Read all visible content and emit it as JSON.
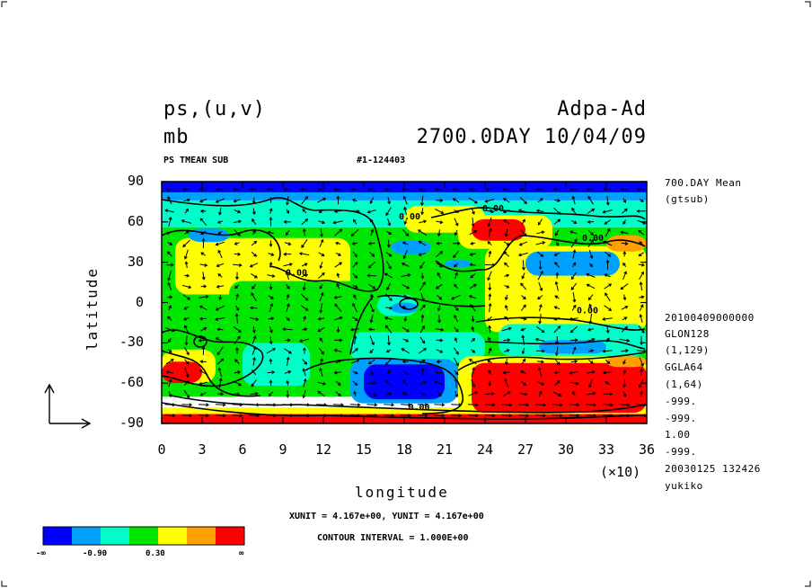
{
  "header": {
    "title_left": "ps,(u,v)",
    "title_right": "Adpa-Ad",
    "unit": "mb",
    "date": "2700.0DAY 10/04/09",
    "subtitle_left": "PS TMEAN SUB",
    "subtitle_mid": "#1-124403"
  },
  "side_info": [
    {
      "id": "mean",
      "text": "700.DAY Mean"
    },
    {
      "id": "src",
      "text": "(gtsub)"
    },
    {
      "id": "time",
      "text": "20100409000000"
    },
    {
      "id": "glon",
      "text": "GLON128"
    },
    {
      "id": "glon_range",
      "text": "(1,129)"
    },
    {
      "id": "gla",
      "text": "GGLA64"
    },
    {
      "id": "gla_range",
      "text": "(1,64)"
    },
    {
      "id": "m1",
      "text": "-999."
    },
    {
      "id": "m2",
      "text": "-999."
    },
    {
      "id": "one",
      "text": "1.00"
    },
    {
      "id": "m3",
      "text": "-999."
    },
    {
      "id": "stamp",
      "text": "20030125 132426"
    },
    {
      "id": "user",
      "text": "yukiko"
    }
  ],
  "footer": {
    "units": "XUNIT = 4.167e+00, YUNIT = 4.167e+00",
    "contour": "CONTOUR INTERVAL = 1.000E+00"
  },
  "legend": {
    "colors": [
      "#0000ff",
      "#00a0ff",
      "#00ffc8",
      "#00e600",
      "#ffff00",
      "#ffa000",
      "#ff0000"
    ],
    "ticks": [
      "-∞",
      "-0.90",
      "0.30",
      "∞"
    ]
  },
  "chart_data": {
    "type": "heatmap",
    "xlabel": "longitude",
    "ylabel": "latitude",
    "x_multiplier": "(×10)",
    "xlim": [
      0,
      36
    ],
    "ylim": [
      -90,
      90
    ],
    "xticks": [
      "0",
      "3",
      "6",
      "9",
      "12",
      "15",
      "18",
      "21",
      "24",
      "27",
      "30",
      "33",
      "36"
    ],
    "yticks": [
      "90",
      "60",
      "30",
      "0",
      "-30",
      "-60",
      "-90"
    ],
    "contour_labels": [
      "0.00",
      "0.00",
      "0.00",
      "0.00",
      "0.00",
      "0.00"
    ],
    "regions": [
      {
        "level": 1,
        "lon": [
          0,
          36
        ],
        "lat": [
          76,
          90
        ]
      },
      {
        "level": 0,
        "lon": [
          0,
          36
        ],
        "lat": [
          82,
          90
        ]
      },
      {
        "level": 2,
        "lon": [
          0,
          36
        ],
        "lat": [
          56,
          76
        ]
      },
      {
        "level": 3,
        "lon": [
          0,
          36
        ],
        "lat": [
          -70,
          56
        ]
      },
      {
        "level": 4,
        "lon": [
          0,
          36
        ],
        "lat": [
          -90,
          -78
        ]
      },
      {
        "level": 6,
        "lon": [
          0,
          36
        ],
        "lat": [
          -90,
          -83
        ]
      },
      {
        "level": 4,
        "lon": [
          1,
          14
        ],
        "lat": [
          6,
          48
        ]
      },
      {
        "level": 4,
        "lon": [
          18,
          24
        ],
        "lat": [
          52,
          72
        ]
      },
      {
        "level": 4,
        "lon": [
          24,
          36
        ],
        "lat": [
          -22,
          42
        ]
      },
      {
        "level": 3,
        "lon": [
          5,
          15
        ],
        "lat": [
          -30,
          16
        ]
      },
      {
        "level": 2,
        "lon": [
          6,
          11
        ],
        "lat": [
          -62,
          -30
        ]
      },
      {
        "level": 4,
        "lon": [
          0,
          4
        ],
        "lat": [
          -60,
          -35
        ]
      },
      {
        "level": 6,
        "lon": [
          0,
          3
        ],
        "lat": [
          -60,
          -44
        ]
      },
      {
        "level": 2,
        "lon": [
          14,
          24
        ],
        "lat": [
          -45,
          -22
        ]
      },
      {
        "level": 1,
        "lon": [
          14,
          22
        ],
        "lat": [
          -75,
          -42
        ]
      },
      {
        "level": 0,
        "lon": [
          15,
          21
        ],
        "lat": [
          -72,
          -46
        ]
      },
      {
        "level": 4,
        "lon": [
          22,
          36
        ],
        "lat": [
          -82,
          -40
        ]
      },
      {
        "level": 6,
        "lon": [
          23,
          36
        ],
        "lat": [
          -82,
          -45
        ]
      },
      {
        "level": 5,
        "lon": [
          33,
          36
        ],
        "lat": [
          -48,
          -40
        ]
      },
      {
        "level": 4,
        "lon": [
          22,
          29
        ],
        "lat": [
          40,
          65
        ]
      },
      {
        "level": 6,
        "lon": [
          23,
          27
        ],
        "lat": [
          46,
          62
        ]
      },
      {
        "level": 5,
        "lon": [
          33,
          36
        ],
        "lat": [
          38,
          50
        ]
      },
      {
        "level": 1,
        "lon": [
          27,
          34
        ],
        "lat": [
          20,
          38
        ]
      },
      {
        "level": 2,
        "lon": [
          25,
          36
        ],
        "lat": [
          -40,
          -16
        ]
      },
      {
        "level": 1,
        "lon": [
          28,
          33
        ],
        "lat": [
          -38,
          -28
        ]
      },
      {
        "level": 2,
        "lon": [
          16,
          19
        ],
        "lat": [
          -10,
          6
        ]
      },
      {
        "level": 1,
        "lon": [
          17,
          19
        ],
        "lat": [
          -8,
          0
        ]
      },
      {
        "level": 1,
        "lon": [
          2,
          5
        ],
        "lat": [
          45,
          55
        ]
      },
      {
        "level": 1,
        "lon": [
          17,
          20
        ],
        "lat": [
          36,
          46
        ]
      },
      {
        "level": 1,
        "lon": [
          21,
          23
        ],
        "lat": [
          26,
          32
        ]
      }
    ]
  }
}
